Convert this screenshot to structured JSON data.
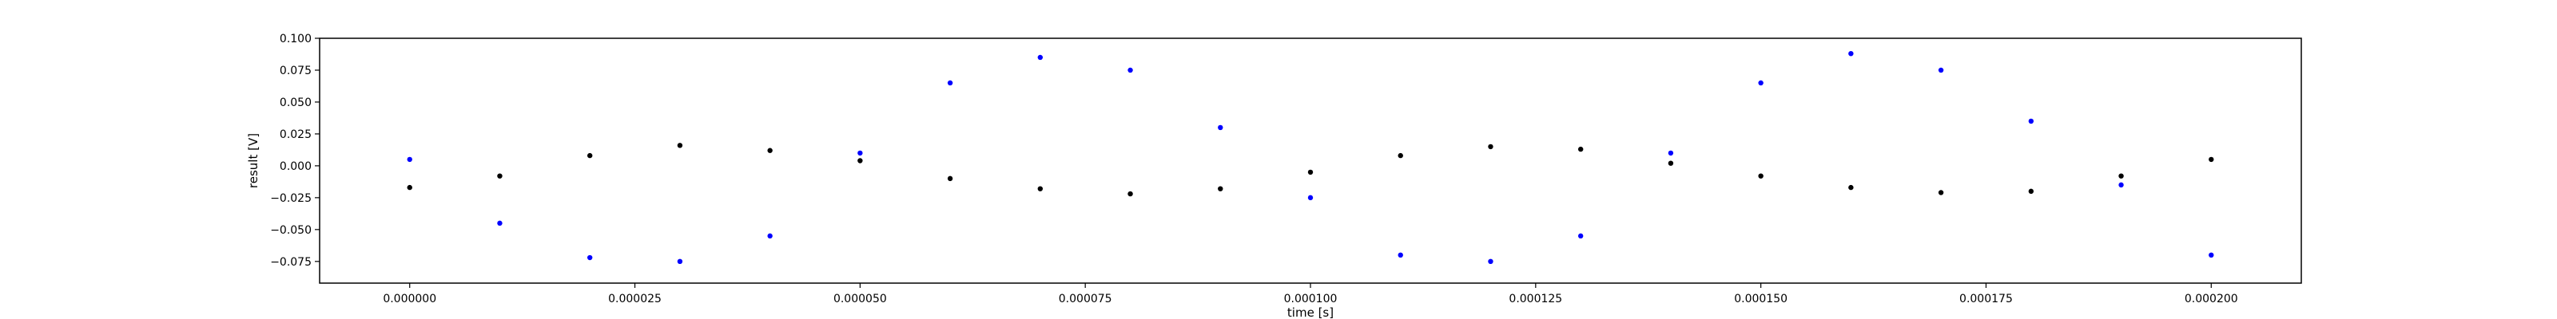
{
  "chart_data": {
    "type": "scatter",
    "title": "",
    "xlabel": "time [s]",
    "ylabel": "result [V]",
    "xlim": [
      -1e-05,
      0.00021
    ],
    "ylim": [
      -0.092,
      0.1
    ],
    "grid": false,
    "legend": "none",
    "x_ticks": [
      0,
      2.5e-05,
      5e-05,
      7.5e-05,
      0.0001,
      0.000125,
      0.00015,
      0.000175,
      0.0002
    ],
    "x_tick_labels": [
      "0.000000",
      "0.000025",
      "0.000050",
      "0.000075",
      "0.000100",
      "0.000125",
      "0.000150",
      "0.000175",
      "0.000200"
    ],
    "y_ticks": [
      -0.075,
      -0.05,
      -0.025,
      0,
      0.025,
      0.05,
      0.075,
      0.1
    ],
    "y_tick_labels": [
      "−0.075",
      "−0.050",
      "−0.025",
      "0.000",
      "0.025",
      "0.050",
      "0.075",
      "0.100"
    ],
    "series": [
      {
        "color": "#0000ff",
        "x": [
          0,
          1e-05,
          2e-05,
          3e-05,
          4e-05,
          5e-05,
          6e-05,
          7e-05,
          8e-05,
          9e-05,
          0.0001,
          0.00011,
          0.00012,
          0.00013,
          0.00014,
          0.00015,
          0.00016,
          0.00017,
          0.00018,
          0.00019,
          0.0002
        ],
        "y": [
          0.005,
          -0.045,
          -0.072,
          -0.075,
          -0.055,
          0.01,
          0.065,
          0.085,
          0.075,
          0.03,
          -0.025,
          -0.07,
          -0.075,
          -0.055,
          0.01,
          0.065,
          0.088,
          0.075,
          0.035,
          -0.015,
          -0.07
        ]
      },
      {
        "color": "#000000",
        "x": [
          0,
          1e-05,
          2e-05,
          3e-05,
          4e-05,
          5e-05,
          6e-05,
          7e-05,
          8e-05,
          9e-05,
          0.0001,
          0.00011,
          0.00012,
          0.00013,
          0.00014,
          0.00015,
          0.00016,
          0.00017,
          0.00018,
          0.00019,
          0.0002
        ],
        "y": [
          -0.017,
          -0.008,
          0.008,
          0.016,
          0.012,
          0.004,
          -0.01,
          -0.018,
          -0.022,
          -0.018,
          -0.005,
          0.008,
          0.015,
          0.013,
          0.002,
          -0.008,
          -0.017,
          -0.021,
          -0.02,
          -0.008,
          0.005
        ]
      }
    ]
  }
}
